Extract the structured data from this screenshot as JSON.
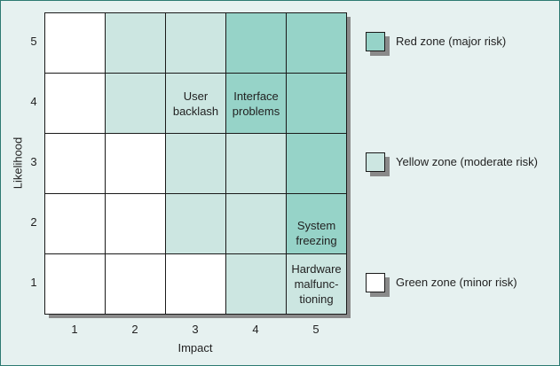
{
  "axes": {
    "x_label": "Impact",
    "y_label": "Likelihood",
    "x_ticks": [
      "1",
      "2",
      "3",
      "4",
      "5"
    ],
    "y_ticks": [
      "5",
      "4",
      "3",
      "2",
      "1"
    ]
  },
  "grid": {
    "rows": [
      [
        {
          "zone": "green",
          "label": ""
        },
        {
          "zone": "yellow",
          "label": ""
        },
        {
          "zone": "yellow",
          "label": ""
        },
        {
          "zone": "red",
          "label": ""
        },
        {
          "zone": "red",
          "label": ""
        }
      ],
      [
        {
          "zone": "green",
          "label": ""
        },
        {
          "zone": "yellow",
          "label": ""
        },
        {
          "zone": "yellow",
          "label": "User\nbacklash"
        },
        {
          "zone": "red",
          "label": "Interface\nproblems"
        },
        {
          "zone": "red",
          "label": ""
        }
      ],
      [
        {
          "zone": "green",
          "label": ""
        },
        {
          "zone": "green",
          "label": ""
        },
        {
          "zone": "yellow",
          "label": ""
        },
        {
          "zone": "yellow",
          "label": ""
        },
        {
          "zone": "red",
          "label": ""
        }
      ],
      [
        {
          "zone": "green",
          "label": ""
        },
        {
          "zone": "green",
          "label": ""
        },
        {
          "zone": "yellow",
          "label": ""
        },
        {
          "zone": "yellow",
          "label": ""
        },
        {
          "zone": "red",
          "label": "System\nfreezing"
        }
      ],
      [
        {
          "zone": "green",
          "label": ""
        },
        {
          "zone": "green",
          "label": ""
        },
        {
          "zone": "green",
          "label": ""
        },
        {
          "zone": "yellow",
          "label": ""
        },
        {
          "zone": "yellow",
          "label": "Hardware\nmalfunc-\ntioning"
        }
      ]
    ]
  },
  "legend": {
    "red": {
      "label": "Red zone (major risk)",
      "color": "#96d3c8"
    },
    "yellow": {
      "label": "Yellow zone (moderate risk)",
      "color": "#cce6e1"
    },
    "green": {
      "label": "Green zone (minor risk)",
      "color": "#ffffff"
    }
  }
}
